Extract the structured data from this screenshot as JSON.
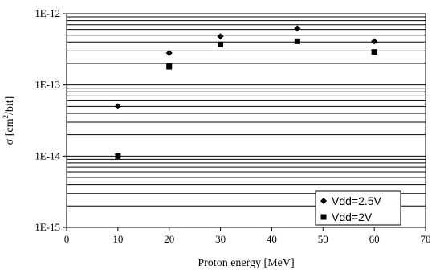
{
  "chart_data": {
    "type": "scatter",
    "title": "",
    "xlabel": "Proton energy [MeV]",
    "ylabel_base": "σ [cm",
    "ylabel_sup": "2",
    "ylabel_tail": "/bit]",
    "xlim": [
      0,
      70
    ],
    "ylim": [
      1e-15,
      1e-12
    ],
    "yscale": "log",
    "grid": "horizontal major and minor",
    "legend_position": "bottom-right",
    "x_ticks": [
      "0",
      "10",
      "20",
      "30",
      "40",
      "50",
      "60",
      "70"
    ],
    "x_tick_values": [
      0,
      10,
      20,
      30,
      40,
      50,
      60,
      70
    ],
    "y_ticks": [
      "1E-12",
      "1E-13",
      "1E-14",
      "1E-15"
    ],
    "y_tick_values": [
      1e-12,
      1e-13,
      1e-14,
      1e-15
    ],
    "series": [
      {
        "name": "Vdd=2.5V",
        "marker": "diamond",
        "color": "#000000",
        "points": [
          {
            "x": 10,
            "y": 5e-14
          },
          {
            "x": 20,
            "y": 2.8e-13
          },
          {
            "x": 30,
            "y": 4.8e-13
          },
          {
            "x": 45,
            "y": 6.2e-13
          },
          {
            "x": 60,
            "y": 4.1e-13
          }
        ]
      },
      {
        "name": "Vdd=2V",
        "marker": "square",
        "color": "#000000",
        "points": [
          {
            "x": 10,
            "y": 1e-14
          },
          {
            "x": 20,
            "y": 1.8e-13
          },
          {
            "x": 30,
            "y": 3.7e-13
          },
          {
            "x": 45,
            "y": 4.1e-13
          },
          {
            "x": 60,
            "y": 2.9e-13
          }
        ]
      }
    ]
  }
}
